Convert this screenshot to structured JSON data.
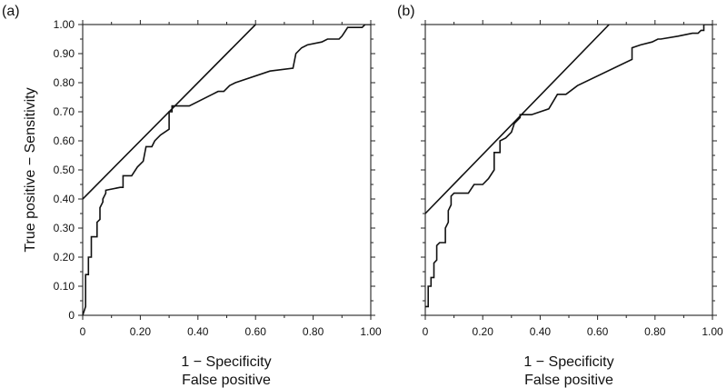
{
  "chart_data": [
    {
      "type": "line",
      "panel_label": "(a)",
      "ylabel": "True positive − Sensitivity",
      "xlabel_lines": [
        "1 − Specificity",
        "False positive"
      ],
      "xlim": [
        0,
        1
      ],
      "ylim": [
        0,
        1
      ],
      "x_ticks": [
        "0",
        "0.20",
        "0.40",
        "0.60",
        "0.80",
        "1.00"
      ],
      "y_ticks": [
        "0",
        "0.10",
        "0.20",
        "0.30",
        "0.40",
        "0.50",
        "0.60",
        "0.70",
        "0.80",
        "0.90",
        "1.00"
      ],
      "grid": false,
      "tangent_line": {
        "x": [
          0,
          0.6
        ],
        "y": [
          0.4,
          1.0
        ]
      },
      "roc_curve": {
        "x": [
          0,
          0.01,
          0.01,
          0.02,
          0.02,
          0.03,
          0.03,
          0.05,
          0.05,
          0.06,
          0.06,
          0.07,
          0.07,
          0.08,
          0.08,
          0.13,
          0.14,
          0.14,
          0.17,
          0.19,
          0.21,
          0.22,
          0.24,
          0.25,
          0.27,
          0.3,
          0.3,
          0.31,
          0.31,
          0.32,
          0.33,
          0.37,
          0.45,
          0.47,
          0.49,
          0.51,
          0.53,
          0.65,
          0.73,
          0.74,
          0.76,
          0.78,
          0.83,
          0.85,
          0.89,
          0.9,
          0.92,
          0.97,
          0.98,
          1.0
        ],
        "y": [
          0,
          0.03,
          0.14,
          0.14,
          0.2,
          0.2,
          0.27,
          0.27,
          0.32,
          0.33,
          0.37,
          0.39,
          0.4,
          0.42,
          0.43,
          0.44,
          0.44,
          0.48,
          0.48,
          0.51,
          0.53,
          0.58,
          0.58,
          0.6,
          0.62,
          0.64,
          0.7,
          0.7,
          0.72,
          0.72,
          0.72,
          0.72,
          0.76,
          0.77,
          0.77,
          0.79,
          0.8,
          0.84,
          0.85,
          0.9,
          0.92,
          0.93,
          0.94,
          0.95,
          0.95,
          0.96,
          0.99,
          0.99,
          1.0,
          1.0
        ]
      }
    },
    {
      "type": "line",
      "panel_label": "(b)",
      "ylabel": "",
      "xlabel_lines": [
        "1 − Specificity",
        "False positive"
      ],
      "xlim": [
        0,
        1
      ],
      "ylim": [
        0,
        1
      ],
      "x_ticks": [
        "0",
        "0.20",
        "0.40",
        "0.60",
        "0.80",
        "1.00"
      ],
      "y_ticks": [
        "0",
        "0.10",
        "0.20",
        "0.30",
        "0.40",
        "0.50",
        "0.60",
        "0.70",
        "0.80",
        "0.90",
        "1.00"
      ],
      "grid": false,
      "tangent_line": {
        "x": [
          0,
          0.64
        ],
        "y": [
          0.35,
          1.0
        ]
      },
      "roc_curve": {
        "x": [
          0,
          0.01,
          0.01,
          0.02,
          0.02,
          0.03,
          0.03,
          0.04,
          0.04,
          0.05,
          0.07,
          0.07,
          0.08,
          0.08,
          0.09,
          0.09,
          0.1,
          0.15,
          0.17,
          0.2,
          0.22,
          0.24,
          0.24,
          0.26,
          0.26,
          0.28,
          0.3,
          0.31,
          0.33,
          0.33,
          0.37,
          0.43,
          0.46,
          0.49,
          0.53,
          0.72,
          0.72,
          0.75,
          0.79,
          0.81,
          0.82,
          0.88,
          0.93,
          0.95,
          0.96,
          0.97,
          0.97,
          1.0
        ],
        "y": [
          0.03,
          0.03,
          0.1,
          0.1,
          0.13,
          0.13,
          0.18,
          0.19,
          0.24,
          0.25,
          0.25,
          0.3,
          0.32,
          0.36,
          0.38,
          0.41,
          0.42,
          0.42,
          0.45,
          0.45,
          0.47,
          0.5,
          0.56,
          0.56,
          0.6,
          0.61,
          0.63,
          0.66,
          0.68,
          0.69,
          0.69,
          0.71,
          0.76,
          0.76,
          0.79,
          0.88,
          0.92,
          0.93,
          0.94,
          0.95,
          0.95,
          0.96,
          0.97,
          0.97,
          0.98,
          0.98,
          1.0,
          1.0
        ]
      }
    }
  ]
}
